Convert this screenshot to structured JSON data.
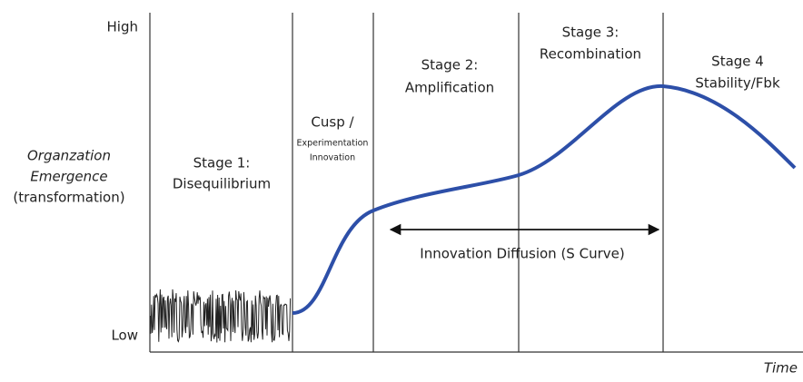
{
  "axis": {
    "high": "High",
    "low": "Low",
    "x_label": "Time",
    "y_label": [
      "Organzation",
      "Emergence",
      "(transformation)"
    ]
  },
  "stages": [
    {
      "lines": [
        "Stage 1:",
        "Disequilibrium"
      ]
    },
    {
      "lines": [
        "Cusp  /",
        "Experimentation",
        "Innovation"
      ]
    },
    {
      "lines": [
        "Stage 2:",
        "Amplification"
      ]
    },
    {
      "lines": [
        "Stage 3:",
        "Recombination"
      ]
    },
    {
      "lines": [
        "Stage 4",
        "Stability/Fbk"
      ]
    }
  ],
  "arrow_label": "Innovation Diffusion (S Curve)"
}
